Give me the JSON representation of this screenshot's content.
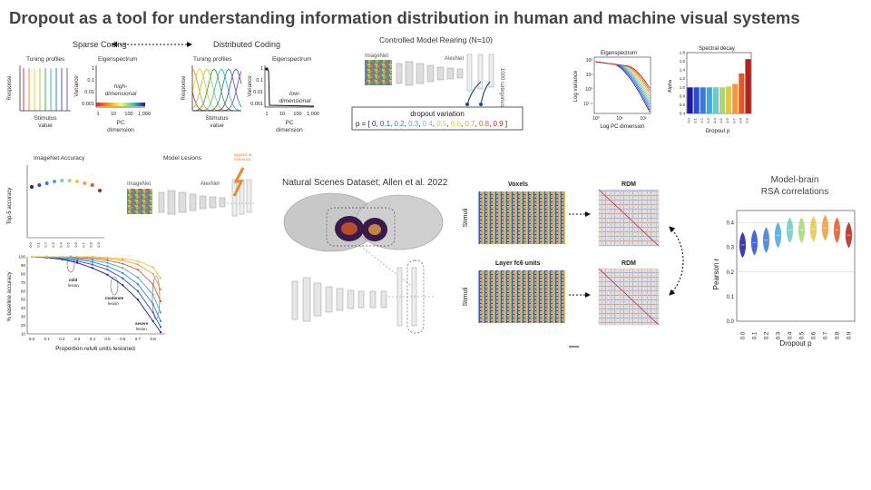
{
  "slide": {
    "title": "Dropout as a tool for understanding information distribution in human and machine visual systems"
  },
  "coding": {
    "sparse_title": "Sparse Coding",
    "distributed_title": "Distributed Coding",
    "tuning_profiles": "Tuning profiles",
    "response": "Response",
    "stimulus": "Stimulus",
    "value": "value",
    "eigenspectrum": "Eigenspectrum",
    "variance": "Variance",
    "pc": "PC",
    "dimension": "dimension",
    "high_1": "high-",
    "high_2": "dimensional",
    "low_1": "low-",
    "low_2": "dimensional",
    "sparse_yticks": [
      "1",
      "0.1",
      "0.01",
      "0.001"
    ],
    "sparse_xticks": [
      "1",
      "10",
      "100",
      "1,000"
    ],
    "dist_yticks": [
      "1",
      "0.1",
      "0.01",
      "0.001"
    ],
    "dist_xticks": [
      "1",
      "10",
      "100",
      "1,000"
    ]
  },
  "rearing": {
    "title": "Controlled Model Rearing (N=10)",
    "imagenet": "ImageNet",
    "alexnet": "AlexNet",
    "categories": "1000 categories",
    "dropout_variation": "dropout variation",
    "p_prefix": "p = [",
    "p_values": [
      "0",
      "0.1",
      "0.2",
      "0.3",
      "0.4",
      "0.5",
      "0.6",
      "0.7",
      "0.8",
      "0.9"
    ],
    "p_colors": [
      "#1b1b9c",
      "#2a4bd7",
      "#3a7bd5",
      "#47a6d9",
      "#6cc9c4",
      "#a7d67d",
      "#e2c844",
      "#f09a3a",
      "#e2592a",
      "#b3221c"
    ],
    "p_suffix": "]"
  },
  "eig_chart": {
    "title": "Eigenspectrum",
    "ylabel": "Log variance",
    "xlabel": "Log PC dimension",
    "yticks": [
      "10²",
      "10¹",
      "10⁰",
      "10⁻¹"
    ],
    "xticks": [
      "10⁰",
      "10¹",
      "10²"
    ]
  },
  "spectral": {
    "title": "Spectral decay",
    "ylabel": "Alpha",
    "xlabel": "Dropout p",
    "yticks": [
      "1.8",
      "1.6",
      "1.4",
      "1.2",
      "1.0",
      "0.8",
      "0.6",
      "0.4"
    ],
    "xticks": [
      "0.0",
      "0.1",
      "0.2",
      "0.3",
      "0.4",
      "0.5",
      "0.6",
      "0.7",
      "0.8",
      "0.9"
    ]
  },
  "accuracy": {
    "title": "ImageNet Accuracy",
    "ylabel": "Top-5 accuracy",
    "xticks": [
      "0.0",
      "0.1",
      "0.2",
      "0.3",
      "0.4",
      "0.5",
      "0.6",
      "0.7",
      "0.8",
      "0.9"
    ]
  },
  "lesions": {
    "title": "Model Lesions",
    "imagenet": "ImageNet",
    "alexnet": "AlexNet",
    "applied_1": "applied at",
    "applied_2": "inference"
  },
  "lesion_chart": {
    "ylabel": "% baseline accuracy",
    "xlabel": "Proportion relu6 units lesioned",
    "yticks": [
      "100",
      "90",
      "80",
      "70",
      "60",
      "50",
      "40",
      "30",
      "20",
      "10"
    ],
    "xticks": [
      "0.0",
      "0.1",
      "0.2",
      "0.3",
      "0.4",
      "0.5",
      "0.6",
      "0.7",
      "0.8"
    ],
    "mild_1": "mild",
    "mild_2": "lesion",
    "moderate_1": "moderate",
    "moderate_2": "lesion",
    "severe_1": "severe",
    "severe_2": "lesion"
  },
  "nsd": {
    "title": "Natural Scenes Dataset; Allen et al. 2022",
    "voxels": "Voxels",
    "layer": "Layer fc6 units",
    "stimuli": "Stimuli",
    "rdm": "RDM"
  },
  "rsa": {
    "title_1": "Model-brain",
    "title_2": "RSA correlations",
    "ylabel": "Pearson r",
    "xlabel": "Dropout p",
    "yticks": [
      "0.4",
      "0.3",
      "0.2",
      "0.1",
      "0.0"
    ],
    "xticks": [
      "0.0",
      "0.1",
      "0.2",
      "0.3",
      "0.4",
      "0.5",
      "0.6",
      "0.7",
      "0.8",
      "0.9"
    ]
  },
  "chart_data": [
    {
      "type": "bar",
      "title": "Spectral decay",
      "xlabel": "Dropout p",
      "ylabel": "Alpha",
      "categories": [
        "0.0",
        "0.1",
        "0.2",
        "0.3",
        "0.4",
        "0.5",
        "0.6",
        "0.7",
        "0.8",
        "0.9"
      ],
      "values": [
        1.0,
        1.0,
        1.0,
        1.0,
        1.0,
        1.0,
        1.02,
        1.08,
        1.32,
        1.65
      ],
      "ylim": [
        0.4,
        1.8
      ]
    },
    {
      "type": "scatter",
      "title": "ImageNet Accuracy",
      "ylabel": "Top-5 accuracy",
      "x": [
        0,
        0.1,
        0.2,
        0.3,
        0.4,
        0.5,
        0.6,
        0.7,
        0.8,
        0.9
      ],
      "y": [
        0.78,
        0.79,
        0.8,
        0.81,
        0.815,
        0.815,
        0.81,
        0.8,
        0.79,
        0.76
      ],
      "ylim": [
        0.5,
        0.9
      ]
    },
    {
      "type": "line",
      "xlabel": "Proportion relu6 units lesioned",
      "ylabel": "% baseline accuracy",
      "x": [
        0,
        0.1,
        0.2,
        0.3,
        0.4,
        0.5,
        0.6,
        0.7,
        0.8,
        0.85
      ],
      "ylim": [
        10,
        100
      ],
      "series": [
        {
          "values": [
            100,
            99,
            97,
            93,
            87,
            79,
            67,
            50,
            25,
            12
          ]
        },
        {
          "values": [
            100,
            99,
            98,
            95,
            91,
            85,
            75,
            60,
            35,
            18
          ]
        },
        {
          "values": [
            100,
            100,
            99,
            97,
            94,
            89,
            81,
            68,
            45,
            25
          ]
        },
        {
          "values": [
            100,
            100,
            99,
            98,
            96,
            93,
            87,
            76,
            56,
            35
          ]
        },
        {
          "values": [
            100,
            100,
            100,
            99,
            98,
            96,
            92,
            85,
            68,
            48
          ]
        },
        {
          "values": [
            100,
            100,
            100,
            100,
            99,
            98,
            96,
            91,
            80,
            62
          ]
        },
        {
          "values": [
            100,
            100,
            100,
            100,
            100,
            99,
            98,
            95,
            88,
            75
          ]
        }
      ]
    },
    {
      "type": "scatter",
      "title": "Model-brain RSA correlations",
      "xlabel": "Dropout p",
      "ylabel": "Pearson r",
      "categories": [
        "0.0",
        "0.1",
        "0.2",
        "0.3",
        "0.4",
        "0.5",
        "0.6",
        "0.7",
        "0.8",
        "0.9"
      ],
      "values": [
        0.31,
        0.32,
        0.33,
        0.35,
        0.37,
        0.37,
        0.375,
        0.38,
        0.37,
        0.35
      ],
      "ylim": [
        0.0,
        0.45
      ]
    }
  ]
}
